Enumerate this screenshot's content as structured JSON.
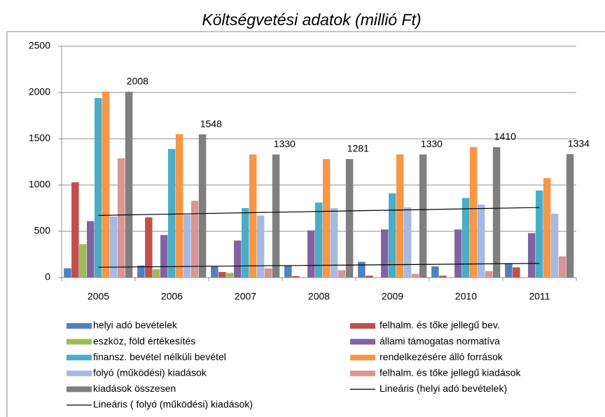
{
  "chart_data": {
    "type": "bar",
    "title": "Költségvetési adatok (millió Ft)",
    "categories": [
      "2005",
      "2006",
      "2007",
      "2008",
      "2009",
      "2010",
      "2011"
    ],
    "series": [
      {
        "name": "helyi adó bevételek",
        "color": "#4f81bd",
        "values": [
          100,
          130,
          120,
          130,
          170,
          120,
          155
        ]
      },
      {
        "name": "felhalm. és tőke jellegű bev.",
        "color": "#c0504d",
        "values": [
          1030,
          650,
          60,
          15,
          20,
          20,
          110
        ]
      },
      {
        "name": "eszköz, föld  értékesítés",
        "color": "#9bbb59",
        "values": [
          360,
          90,
          50,
          0,
          0,
          0,
          0
        ]
      },
      {
        "name": "állami támogatas normatíva",
        "color": "#8064a2",
        "values": [
          610,
          460,
          400,
          510,
          520,
          520,
          480
        ]
      },
      {
        "name": "finansz. bevétel nélküli bevétel",
        "color": "#4bacc6",
        "values": [
          1940,
          1390,
          750,
          810,
          910,
          860,
          940
        ]
      },
      {
        "name": "rendelkezésére álló források",
        "color": "#f79646",
        "values": [
          2010,
          1550,
          1330,
          1280,
          1330,
          1410,
          1075
        ]
      },
      {
        "name": "folyó (működési) kiadások",
        "color": "#a5b9e3",
        "values": [
          660,
          680,
          670,
          750,
          760,
          790,
          690
        ]
      },
      {
        "name": "felhalm. és tőke jellegű kiadások",
        "color": "#d99694",
        "values": [
          1290,
          830,
          100,
          80,
          40,
          70,
          230
        ]
      },
      {
        "name": "kiadások összesen",
        "color": "#7f7f7f",
        "values": [
          2008,
          1548,
          1330,
          1281,
          1330,
          1410,
          1334
        ],
        "data_labels": true
      }
    ],
    "trendlines": [
      {
        "name": "Lineáris (helyi adó bevételek)",
        "series": 0,
        "color": "#000000"
      },
      {
        "name": "Lineáris ( folyó (működési) kiadások)",
        "series": 6,
        "color": "#000000"
      }
    ],
    "ylim": [
      0,
      2500
    ],
    "yticks": [
      0,
      500,
      1000,
      1500,
      2000,
      2500
    ],
    "grid": true,
    "legend": "bottom"
  }
}
